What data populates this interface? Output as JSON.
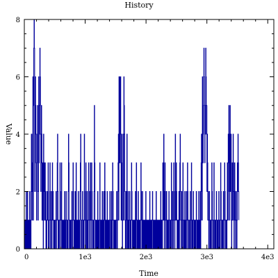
{
  "chart_data": {
    "type": "line",
    "title": "History",
    "xlabel": "Time",
    "ylabel": "Value",
    "xlim": [
      0,
      4100
    ],
    "ylim": [
      0,
      8
    ],
    "x_ticks": [
      0,
      1000,
      2000,
      3000,
      4000
    ],
    "x_tick_labels": [
      "0",
      "1e3",
      "2e3",
      "3e3",
      "4e3"
    ],
    "y_ticks": [
      0,
      2,
      4,
      6,
      8
    ],
    "y_tick_labels": [
      "0",
      "2",
      "4",
      "6",
      "8"
    ],
    "grid": false,
    "line_color": "#00009c",
    "series": [
      {
        "step": 5,
        "values": [
          0,
          1,
          0,
          1,
          0,
          0,
          2,
          0,
          1,
          0,
          2,
          0,
          1,
          0,
          0,
          1,
          0,
          2,
          1,
          0,
          1,
          0,
          2,
          4,
          3,
          1,
          2,
          4,
          6,
          1,
          5,
          7,
          8,
          7,
          2,
          3,
          6,
          5,
          4,
          2,
          1,
          3,
          4,
          5,
          2,
          1,
          2,
          6,
          3,
          4,
          5,
          7,
          6,
          4,
          2,
          3,
          5,
          4,
          1,
          2,
          3,
          1,
          0,
          4,
          2,
          3,
          1,
          2,
          3,
          1,
          2,
          0,
          1,
          0,
          1,
          2,
          1,
          1,
          3,
          0,
          1,
          0,
          1,
          2,
          3,
          1,
          0,
          1,
          2,
          1,
          0,
          1,
          3,
          1,
          2,
          1,
          0,
          1,
          1,
          0,
          1,
          0,
          1,
          1,
          2,
          0,
          1,
          1,
          3,
          4,
          2,
          0,
          1,
          0,
          1,
          0,
          1,
          3,
          2,
          1,
          0,
          1,
          3,
          1,
          0,
          1,
          0,
          1,
          0,
          1,
          0,
          1,
          2,
          0,
          1,
          0,
          1,
          2,
          1,
          0,
          1,
          0,
          1,
          0,
          2,
          4,
          3,
          1,
          0,
          1,
          0,
          1,
          0,
          1,
          0,
          1,
          2,
          1,
          0,
          1,
          3,
          2,
          1,
          0,
          1,
          0,
          1,
          2,
          0,
          1,
          3,
          0,
          1,
          0,
          1,
          0,
          1,
          2,
          0,
          1,
          0,
          1,
          0,
          2,
          3,
          4,
          1,
          0,
          1,
          0,
          1,
          2,
          1,
          0,
          1,
          0,
          1,
          4,
          2,
          1,
          0,
          1,
          3,
          1,
          0,
          1,
          2,
          0,
          1,
          0,
          1,
          3,
          2,
          1,
          0,
          1,
          2,
          3,
          1,
          0,
          1,
          3,
          2,
          1,
          0,
          1,
          0,
          1,
          0,
          2,
          5,
          3,
          1,
          0,
          1,
          0,
          1,
          0,
          1,
          0,
          1,
          2,
          0,
          1,
          0,
          1,
          0,
          1,
          3,
          1,
          0,
          1,
          0,
          1,
          0,
          1,
          2,
          0,
          1,
          0,
          1,
          2,
          0,
          1,
          3,
          2,
          0,
          1,
          0,
          1,
          0,
          1,
          2,
          0,
          1,
          0,
          1,
          0,
          1,
          0,
          1,
          2,
          1,
          0,
          1,
          0,
          2,
          1,
          0,
          1,
          3,
          2,
          1,
          0,
          1,
          0,
          1,
          0,
          1,
          0,
          1,
          0,
          1,
          2,
          1,
          0,
          1,
          2,
          3,
          4,
          1,
          6,
          5,
          3,
          6,
          4,
          6,
          3,
          1,
          4,
          3,
          1,
          0,
          1,
          4,
          2,
          1,
          6,
          5,
          4,
          2,
          1,
          0,
          1,
          2,
          0,
          1,
          4,
          1,
          0,
          1,
          2,
          0,
          1,
          0,
          1,
          2,
          1,
          0,
          1,
          0,
          1,
          3,
          2,
          1,
          0,
          1,
          0,
          1,
          0,
          1,
          0,
          1,
          0,
          1,
          2,
          0,
          1,
          3,
          1,
          0,
          1,
          0,
          1,
          2,
          0,
          1,
          0,
          1,
          0,
          1,
          0,
          1,
          3,
          2,
          1,
          0,
          1,
          2,
          0,
          1,
          0,
          1,
          0,
          1,
          0,
          1,
          0,
          1,
          2,
          0,
          1,
          0,
          1,
          0,
          1,
          0,
          1,
          0,
          1,
          0,
          1,
          2,
          0,
          1,
          0,
          1,
          0,
          1,
          0,
          1,
          2,
          1,
          0,
          1,
          0,
          1,
          0,
          1,
          0,
          1,
          0,
          1,
          2,
          0,
          1,
          0,
          1,
          0,
          1,
          0,
          1,
          0,
          1,
          0,
          1,
          0,
          1,
          2,
          0,
          1,
          0,
          1,
          0,
          1,
          3,
          2,
          1,
          4,
          2,
          0,
          1,
          3,
          2,
          1,
          0,
          1,
          2,
          1,
          0,
          1,
          0,
          1,
          0,
          1,
          2,
          1,
          0,
          1,
          0,
          1,
          0,
          1,
          3,
          1,
          0,
          1,
          2,
          1,
          0,
          1,
          3,
          2,
          1,
          0,
          1,
          4,
          2,
          1,
          3,
          2,
          1,
          0,
          1,
          0,
          1,
          0,
          1,
          2,
          0,
          1,
          3,
          4,
          2,
          1,
          0,
          1,
          2,
          1,
          0,
          1,
          3,
          1,
          0,
          1,
          0,
          1,
          2,
          0,
          1,
          0,
          1,
          2,
          1,
          0,
          1,
          3,
          2,
          1,
          0,
          1,
          0,
          1,
          0,
          1,
          2,
          1,
          0,
          1,
          3,
          1,
          0,
          1,
          0,
          1,
          2,
          1,
          0,
          1,
          0,
          1,
          0,
          1,
          0,
          1,
          2,
          1,
          0,
          1,
          0,
          1,
          0,
          1,
          2,
          0,
          1,
          0,
          1,
          2,
          0,
          1,
          3,
          4,
          2,
          1,
          6,
          5,
          3,
          4,
          6,
          7,
          6,
          5,
          3,
          4,
          5,
          7,
          6,
          4,
          5,
          2,
          4,
          3,
          1,
          2,
          1,
          0,
          1,
          2,
          1,
          0,
          1,
          0,
          1,
          0,
          1,
          3,
          2,
          1,
          0,
          1,
          0,
          1,
          3,
          1,
          0,
          1,
          0,
          1,
          0,
          1,
          2,
          1,
          0,
          1,
          0,
          1,
          0,
          1,
          2,
          1,
          0,
          1,
          0,
          1,
          3,
          2,
          1,
          0,
          1,
          0,
          1,
          0,
          1,
          2,
          1,
          0,
          1,
          3,
          2,
          1,
          0,
          1,
          0,
          1,
          0,
          1,
          3,
          2,
          1,
          4,
          3,
          5,
          2,
          1,
          4,
          5,
          2,
          3,
          4,
          1,
          0,
          1,
          3,
          2,
          1,
          4,
          3,
          2,
          0,
          1,
          3,
          2,
          1,
          0,
          1,
          2,
          1,
          0,
          1,
          3,
          2,
          4,
          3,
          2,
          1
        ]
      }
    ]
  }
}
